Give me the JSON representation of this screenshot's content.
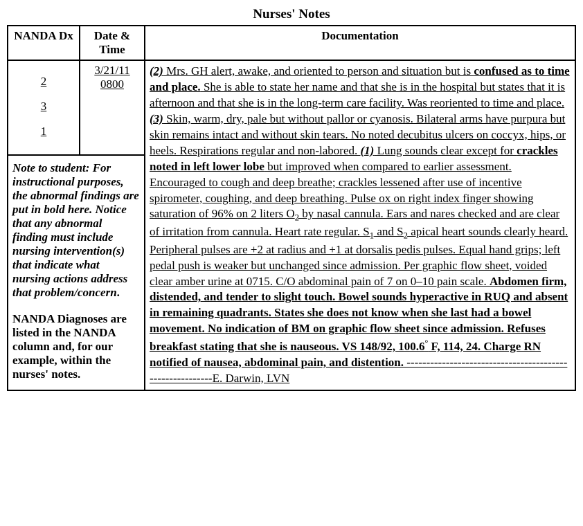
{
  "title": "Nurses' Notes",
  "headers": {
    "nanda": "NANDA Dx",
    "datetime": "Date & Time",
    "doc": "Documentation"
  },
  "nanda_items": [
    "2",
    "3",
    "1"
  ],
  "datetime": {
    "date": "3/21/11",
    "time": "0800"
  },
  "documentation": {
    "m2": "(2)",
    "t1": " Mrs. GH alert, awake, and oriented to person and situation but is ",
    "b1": "confused as to time and place.",
    "t2": " She is able to state her name and that she is in the hospital but states that it is afternoon and that she is in the long-term care facility. Was reoriented to time and place. ",
    "m3": "(3)",
    "t3": " Skin, warm, dry, pale but without pallor or cyanosis. Bilateral arms have purpura but skin remains intact and without skin tears. No noted decubitus ulcers on coccyx, hips, or heels. Respirations regular and non-labored. ",
    "m1": "(1)",
    "t4": " Lung sounds clear except for ",
    "b2": "crackles noted in left lower lobe",
    "t5a": " but improved when compared to earlier assessment. Encouraged to cough and deep breathe; crackles lessened after use of incentive spirometer, coughing, and deep breathing. Pulse ox on right index finger showing saturation of 96% on 2 liters O",
    "t5b": " by nasal cannula. Ears and nares checked and are clear of irritation from cannula. Heart rate regular. S",
    "t5c": " and S",
    "t5d": " apical heart sounds clearly heard. Peripheral pulses are +2 at radius and +1 at dorsalis pedis pulses. Equal hand grips; left pedal push is weaker but unchanged since admission. Per graphic flow sheet, voided clear amber urine at 0715. C/O abdominal pain of 7 on 0–10 pain scale. ",
    "b3a": "Abdomen firm, distended, and tender to slight touch. Bowel sounds hyperactive in RUQ and absent in remaining quadrants. States she does not know when she last had a bowel movement. No indication of BM on graphic flow sheet since admission. Refuses breakfast stating that she is nauseous. VS 148/92, 100.6",
    "b3b": " F, 114, 24. Charge RN notified of nausea, abdominal pain, and distention.",
    "dashes": " ---------------------------------------------------------",
    "sig": "E. Darwin, LVN",
    "sub2": "2",
    "sub1": "1",
    "deg": "°"
  },
  "student_note": {
    "p1": "Note to student: For instructional purposes, the abnormal findings are put in bold here. Notice that any abnormal finding must include nursing intervention(s) that indicate what nursing actions address that problem/concern",
    "dot": ".",
    "p2": "NANDA Diagnoses are listed in the NANDA column and, for our example, within the nurses' notes."
  }
}
